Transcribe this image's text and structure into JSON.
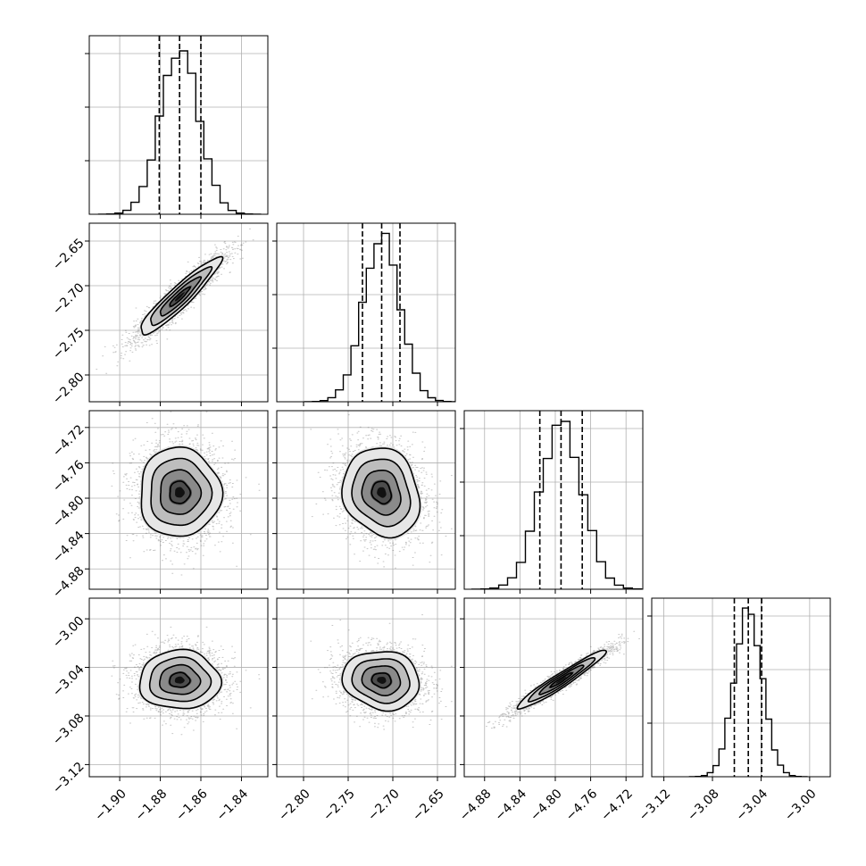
{
  "chart_data": {
    "type": "corner",
    "title": "",
    "n_params": 4,
    "parameters": [
      {
        "index": 0,
        "range": [
          -1.915,
          -1.827
        ],
        "mean": -1.8705,
        "sigma": 0.0095,
        "quantiles": [
          -1.8805,
          -1.8705,
          -1.86
        ],
        "ticks": [
          -1.9,
          -1.88,
          -1.86,
          -1.84
        ],
        "tick_labels": [
          "−1.90",
          "−1.88",
          "−1.86",
          "−1.84"
        ]
      },
      {
        "index": 1,
        "range": [
          -2.83,
          -2.63
        ],
        "mean": -2.7125,
        "sigma": 0.0205,
        "quantiles": [
          -2.734,
          -2.7125,
          -2.692
        ],
        "ticks": [
          -2.8,
          -2.75,
          -2.7,
          -2.65
        ],
        "tick_labels": [
          "−2.80",
          "−2.75",
          "−2.70",
          "−2.65"
        ]
      },
      {
        "index": 2,
        "range": [
          -4.903,
          -4.701
        ],
        "mean": -4.7935,
        "sigma": 0.024,
        "quantiles": [
          -4.8175,
          -4.7935,
          -4.7695
        ],
        "ticks": [
          -4.88,
          -4.84,
          -4.8,
          -4.76,
          -4.72
        ],
        "tick_labels": [
          "−4.88",
          "−4.84",
          "−4.80",
          "−4.76",
          "−4.72"
        ]
      },
      {
        "index": 3,
        "range": [
          -3.13,
          -2.983
        ],
        "mean": -3.0505,
        "sigma": 0.0115,
        "quantiles": [
          -3.062,
          -3.0505,
          -3.0395
        ],
        "ticks": [
          -3.12,
          -3.08,
          -3.04,
          -3.0
        ],
        "tick_labels": [
          "−3.12",
          "−3.08",
          "−3.04",
          "−3.00"
        ]
      }
    ],
    "correlations": [
      [
        0,
        1,
        0.93
      ],
      [
        0,
        2,
        0.0
      ],
      [
        0,
        3,
        0.0
      ],
      [
        1,
        2,
        -0.15
      ],
      [
        1,
        3,
        -0.1
      ],
      [
        2,
        3,
        0.96
      ]
    ],
    "bins": 20,
    "contour_levels_sigma": [
      0.5,
      1.0,
      1.5,
      2.0
    ],
    "grid": true,
    "colors": {
      "points": "#555555",
      "density": "#000000",
      "frame": "#000000",
      "grid": "#b0b0b0"
    }
  }
}
